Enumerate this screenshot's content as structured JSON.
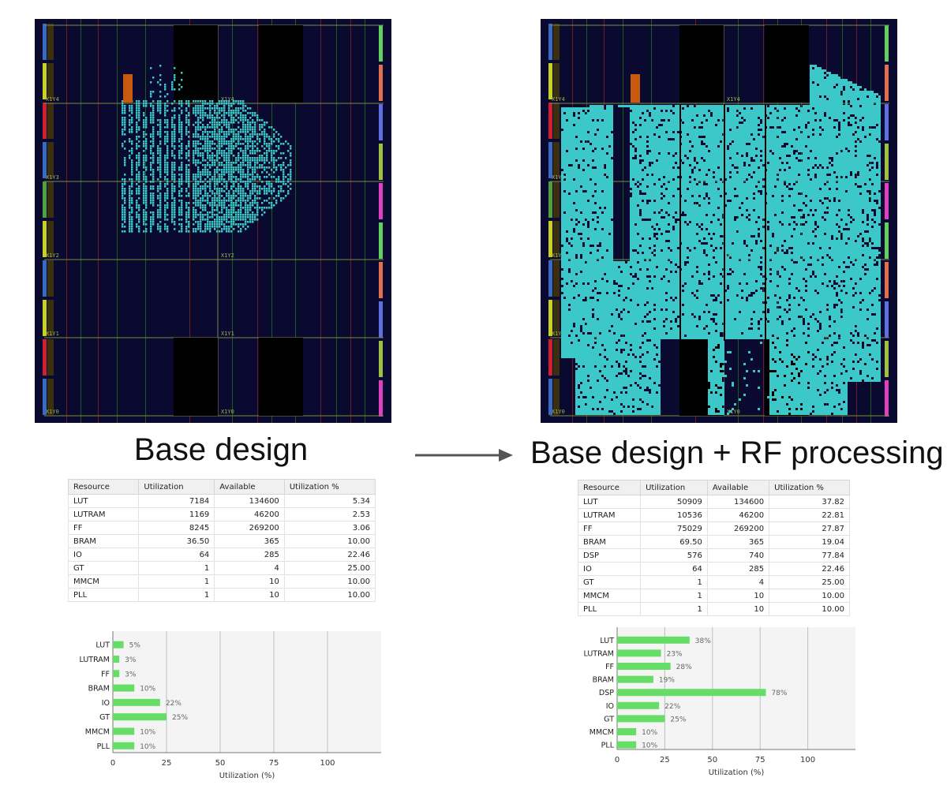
{
  "left": {
    "caption": "Base design",
    "regions": [
      "X1Y4",
      "X1Y4",
      "X1Y3",
      "X1Y2",
      "X1Y2",
      "X1Y1",
      "X1Y1",
      "X1Y0",
      "X1Y0"
    ],
    "table": {
      "headers": [
        "Resource",
        "Utilization",
        "Available",
        "Utilization %"
      ],
      "rows": [
        [
          "LUT",
          "7184",
          "134600",
          "5.34"
        ],
        [
          "LUTRAM",
          "1169",
          "46200",
          "2.53"
        ],
        [
          "FF",
          "8245",
          "269200",
          "3.06"
        ],
        [
          "BRAM",
          "36.50",
          "365",
          "10.00"
        ],
        [
          "IO",
          "64",
          "285",
          "22.46"
        ],
        [
          "GT",
          "1",
          "4",
          "25.00"
        ],
        [
          "MMCM",
          "1",
          "10",
          "10.00"
        ],
        [
          "PLL",
          "1",
          "10",
          "10.00"
        ]
      ]
    },
    "chart_data": {
      "type": "bar",
      "orientation": "horizontal",
      "categories": [
        "LUT",
        "LUTRAM",
        "FF",
        "BRAM",
        "IO",
        "GT",
        "MMCM",
        "PLL"
      ],
      "values": [
        5,
        3,
        3,
        10,
        22,
        25,
        10,
        10
      ],
      "labels": [
        "5%",
        "3%",
        "3%",
        "10%",
        "22%",
        "25%",
        "10%",
        "10%"
      ],
      "xlabel": "Utilization (%)",
      "xticks": [
        0,
        25,
        50,
        75,
        100
      ],
      "xlim": [
        0,
        125
      ],
      "grid": true,
      "bar_color": "#66dd66"
    }
  },
  "right": {
    "caption": "Base design + RF processing",
    "table": {
      "headers": [
        "Resource",
        "Utilization",
        "Available",
        "Utilization %"
      ],
      "rows": [
        [
          "LUT",
          "50909",
          "134600",
          "37.82"
        ],
        [
          "LUTRAM",
          "10536",
          "46200",
          "22.81"
        ],
        [
          "FF",
          "75029",
          "269200",
          "27.87"
        ],
        [
          "BRAM",
          "69.50",
          "365",
          "19.04"
        ],
        [
          "DSP",
          "576",
          "740",
          "77.84"
        ],
        [
          "IO",
          "64",
          "285",
          "22.46"
        ],
        [
          "GT",
          "1",
          "4",
          "25.00"
        ],
        [
          "MMCM",
          "1",
          "10",
          "10.00"
        ],
        [
          "PLL",
          "1",
          "10",
          "10.00"
        ]
      ]
    },
    "chart_data": {
      "type": "bar",
      "orientation": "horizontal",
      "categories": [
        "LUT",
        "LUTRAM",
        "FF",
        "BRAM",
        "DSP",
        "IO",
        "GT",
        "MMCM",
        "PLL"
      ],
      "values": [
        38,
        23,
        28,
        19,
        78,
        22,
        25,
        10,
        10
      ],
      "labels": [
        "38%",
        "23%",
        "28%",
        "19%",
        "78%",
        "22%",
        "25%",
        "10%",
        "10%"
      ],
      "xlabel": "Utilization (%)",
      "xticks": [
        0,
        25,
        50,
        75,
        100
      ],
      "xlim": [
        0,
        125
      ],
      "grid": true,
      "bar_color": "#66dd66"
    }
  },
  "colors": {
    "fabric": "#0a0a30",
    "cell": "#3cc8c8",
    "clock_region_border": "#6a7a3a",
    "arrow": "#555555"
  }
}
